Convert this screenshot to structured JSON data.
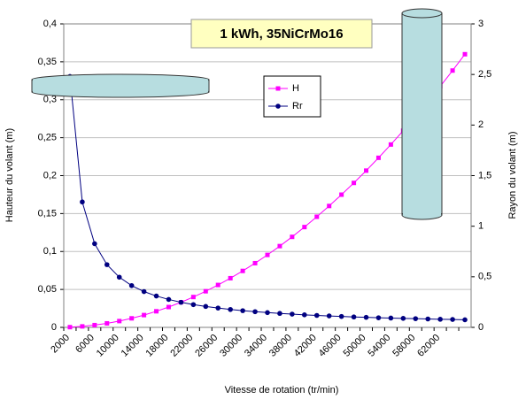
{
  "chart_data": {
    "type": "line",
    "title": "1 kWh, 35NiCrMo16",
    "x_label": "Vitesse de rotation (tr/min)",
    "y_label": "Hauteur du volant (m)",
    "y2_label": "Rayon du volant (m)",
    "categories": [
      "2000",
      null,
      "6000",
      null,
      "10000",
      null,
      "14000",
      null,
      "18000",
      null,
      "22000",
      null,
      "26000",
      null,
      "30000",
      null,
      "34000",
      null,
      "38000",
      null,
      "42000",
      null,
      "46000",
      null,
      "50000",
      null,
      "54000",
      null,
      "58000",
      null,
      "62000",
      null,
      null
    ],
    "series": [
      {
        "name": "H",
        "color": "#ff00ff",
        "marker": "square",
        "values": [
          0.0003,
          0.0013,
          0.003,
          0.0053,
          0.0083,
          0.0119,
          0.0162,
          0.0212,
          0.0268,
          0.0331,
          0.04,
          0.0476,
          0.0559,
          0.0648,
          0.0744,
          0.0846,
          0.0955,
          0.1071,
          0.1193,
          0.1322,
          0.1458,
          0.16,
          0.1749,
          0.1904,
          0.2066,
          0.2235,
          0.241,
          0.2592,
          0.278,
          0.2975,
          0.3177,
          0.3385,
          0.36
        ]
      },
      {
        "name": "Rr",
        "color": "#000080",
        "marker": "circle",
        "axis": "y2",
        "values": [
          2.48,
          1.24,
          0.827,
          0.62,
          0.496,
          0.413,
          0.354,
          0.31,
          0.276,
          0.248,
          0.225,
          0.207,
          0.191,
          0.177,
          0.165,
          0.155,
          0.146,
          0.138,
          0.131,
          0.124,
          0.118,
          0.113,
          0.108,
          0.103,
          0.099,
          0.095,
          0.092,
          0.089,
          0.086,
          0.083,
          0.08,
          0.078,
          0.075
        ]
      }
    ],
    "ylim": [
      0,
      0.4
    ],
    "yticks": [
      0,
      {
        "value": 0.05,
        "label": "0,05"
      },
      {
        "value": 0.1,
        "label": "0,1"
      },
      {
        "value": 0.15,
        "label": "0,15"
      },
      {
        "value": 0.2,
        "label": "0,2"
      },
      {
        "value": 0.25,
        "label": "0,25"
      },
      {
        "value": 0.3,
        "label": "0,3"
      },
      {
        "value": 0.35,
        "label": "0,35"
      },
      {
        "value": 0.4,
        "label": "0,4"
      }
    ],
    "y2lim": [
      0,
      3
    ],
    "y2ticks": [
      0,
      {
        "value": 0.5,
        "label": "0,5"
      },
      1,
      {
        "value": 1.5,
        "label": "1,5"
      },
      2,
      {
        "value": 2.5,
        "label": "2,5"
      },
      3
    ],
    "grid": true
  }
}
